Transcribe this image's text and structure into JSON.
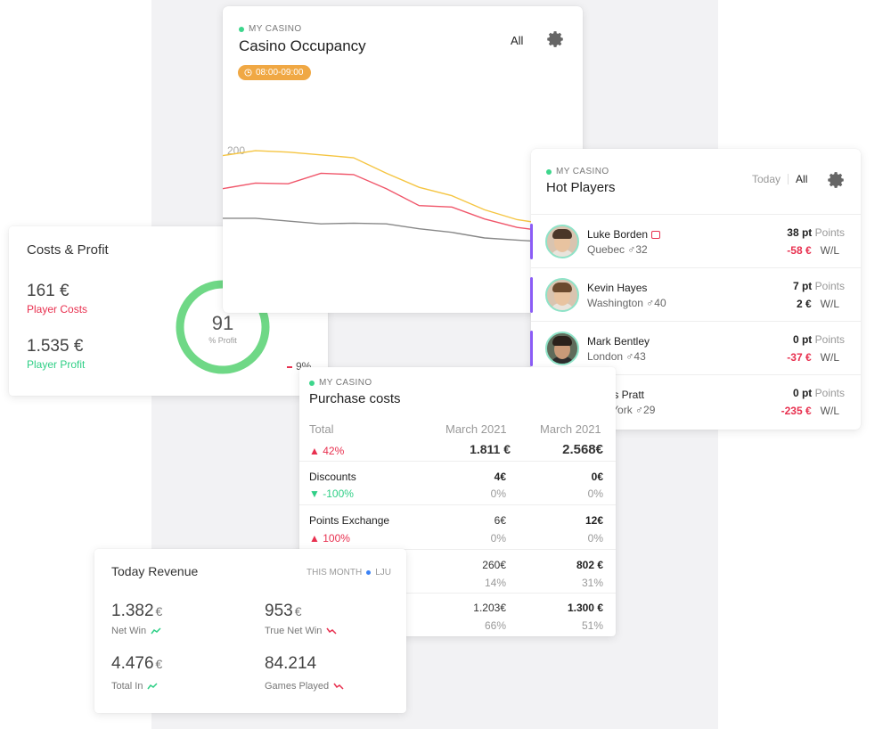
{
  "costs_profit": {
    "title": "Costs & Profit",
    "player_costs_value": "161 €",
    "player_costs_label": "Player Costs",
    "player_profit_value": "1.535 €",
    "player_profit_label": "Player Profit",
    "profit_percent": "91",
    "profit_percent_label": "% Profit",
    "profit_fraction": 0.91,
    "side_percent": "9%"
  },
  "occupancy": {
    "eyebrow": "MY CASINO",
    "title": "Casino Occupancy",
    "filter_label": "All",
    "time_chip": "08:00-09:00",
    "chart_data": {
      "type": "line",
      "ytick": "200",
      "series": [
        {
          "color": "#f5c542",
          "values": [
            195,
            202,
            200,
            196,
            192,
            170,
            150,
            138,
            118,
            104,
            97,
            110
          ]
        },
        {
          "color": "#f0566a",
          "values": [
            148,
            156,
            155,
            170,
            168,
            148,
            124,
            122,
            105,
            93,
            87,
            100
          ]
        },
        {
          "color": "#888888",
          "values": [
            106,
            106,
            102,
            98,
            99,
            98,
            91,
            86,
            78,
            75,
            72,
            74
          ]
        }
      ]
    }
  },
  "hot_players": {
    "eyebrow": "MY CASINO",
    "title": "Hot Players",
    "filters": [
      "Today",
      "All"
    ],
    "points_label": "Points",
    "wl_label": "W/L",
    "players": [
      {
        "name": "Luke Borden",
        "location": "Quebec",
        "age": "32",
        "points": "38 pt",
        "wl": "-58 €",
        "wl_negative": true,
        "gift": true
      },
      {
        "name": "Kevin Hayes",
        "location": "Washington",
        "age": "40",
        "points": "7 pt",
        "wl": "2 €",
        "wl_negative": false,
        "gift": false
      },
      {
        "name": "Mark Bentley",
        "location": "London",
        "age": "43",
        "points": "0 pt",
        "wl": "-37 €",
        "wl_negative": true,
        "gift": false
      },
      {
        "name": "James Pratt",
        "location": "New York",
        "age": "29",
        "points": "0 pt",
        "wl": "-235 €",
        "wl_negative": true,
        "gift": false
      }
    ]
  },
  "purchase": {
    "eyebrow": "MY CASINO",
    "title": "Purchase costs",
    "total_label": "Total",
    "col1": "March 2021",
    "col2": "March 2021",
    "total_change": "42%",
    "total_v1": "1.811 €",
    "total_v2": "2.568€",
    "rows": [
      {
        "label": "Discounts",
        "change": "-100%",
        "v1": "4€",
        "p1": "0%",
        "v2": "0€",
        "p2": "0%"
      },
      {
        "label": "Points Exchange",
        "change": "100%",
        "v1": "6€",
        "p1": "0%",
        "v2": "12€",
        "p2": "0%"
      },
      {
        "label": "",
        "change": "",
        "v1": "260€",
        "p1": "14%",
        "v2": "802 €",
        "p2": "31%"
      },
      {
        "label": "",
        "change": "",
        "v1": "1.203€",
        "p1": "66%",
        "v2": "1.300 €",
        "p2": "51%"
      }
    ]
  },
  "revenue": {
    "title": "Today Revenue",
    "period": "THIS MONTH",
    "location": "LJU",
    "currency": "€",
    "net_win": "1.382",
    "net_win_label": "Net Win",
    "true_net_win": "953",
    "true_net_win_label": "True Net Win",
    "total_in": "4.476",
    "total_in_label": "Total In",
    "games_played": "84.214",
    "games_played_label": "Games Played"
  }
}
